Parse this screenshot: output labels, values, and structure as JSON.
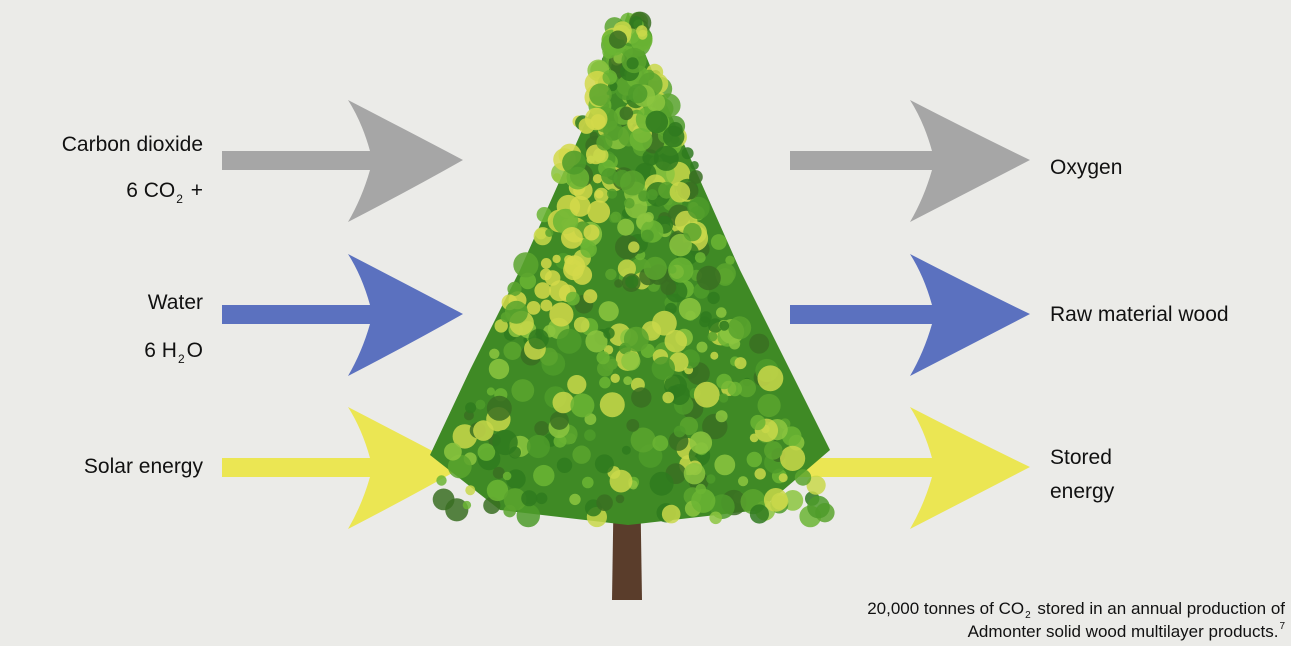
{
  "inputs": [
    {
      "label": "Carbon dioxide",
      "formula": [
        "6 CO",
        "2",
        " +"
      ]
    },
    {
      "label": "Water",
      "formula": [
        "6 H",
        "2",
        "O"
      ]
    },
    {
      "label": "Solar energy"
    }
  ],
  "outputs": [
    {
      "label": "Oxygen"
    },
    {
      "label": "Raw material wood"
    },
    {
      "label_lines": [
        "Stored",
        "energy"
      ]
    }
  ],
  "footnote": {
    "line1": [
      "20,000 tonnes of CO",
      "2",
      " stored in an annual production of"
    ],
    "line2": [
      "Admonter solid wood multilayer products.",
      "7"
    ]
  }
}
